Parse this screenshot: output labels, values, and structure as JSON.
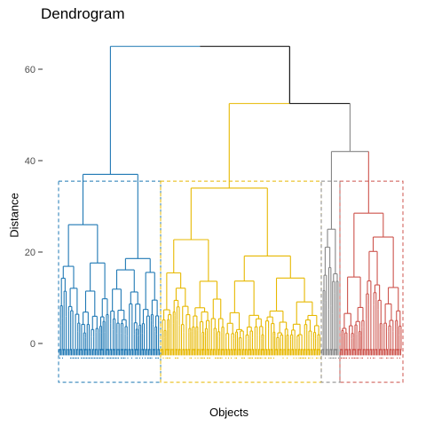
{
  "chart_data": {
    "type": "dendrogram",
    "title": "Dendrogram",
    "xlabel": "Objects",
    "ylabel": "Distance",
    "ylim": [
      -9,
      66
    ],
    "yticks": [
      0,
      20,
      40,
      60
    ],
    "merges": [
      {
        "name": "root",
        "height": 65
      },
      {
        "name": "upper-right",
        "height": 52.5
      },
      {
        "name": "grey-red",
        "height": 42
      },
      {
        "name": "blue-cluster-top",
        "height": 37
      },
      {
        "name": "yellow-cluster-top",
        "height": 34
      }
    ],
    "clusters": [
      {
        "color": "#1f78b4",
        "top_height": 37,
        "box_top": 35.5
      },
      {
        "color": "#e7b800",
        "top_height": 34,
        "box_top": 35.5
      },
      {
        "color": "#868686",
        "top_height": 25,
        "box_top": 35.5
      },
      {
        "color": "#cd534c",
        "top_height": 28.5,
        "box_top": 35.5
      }
    ],
    "box_bottom": -8.5,
    "grid": false
  }
}
